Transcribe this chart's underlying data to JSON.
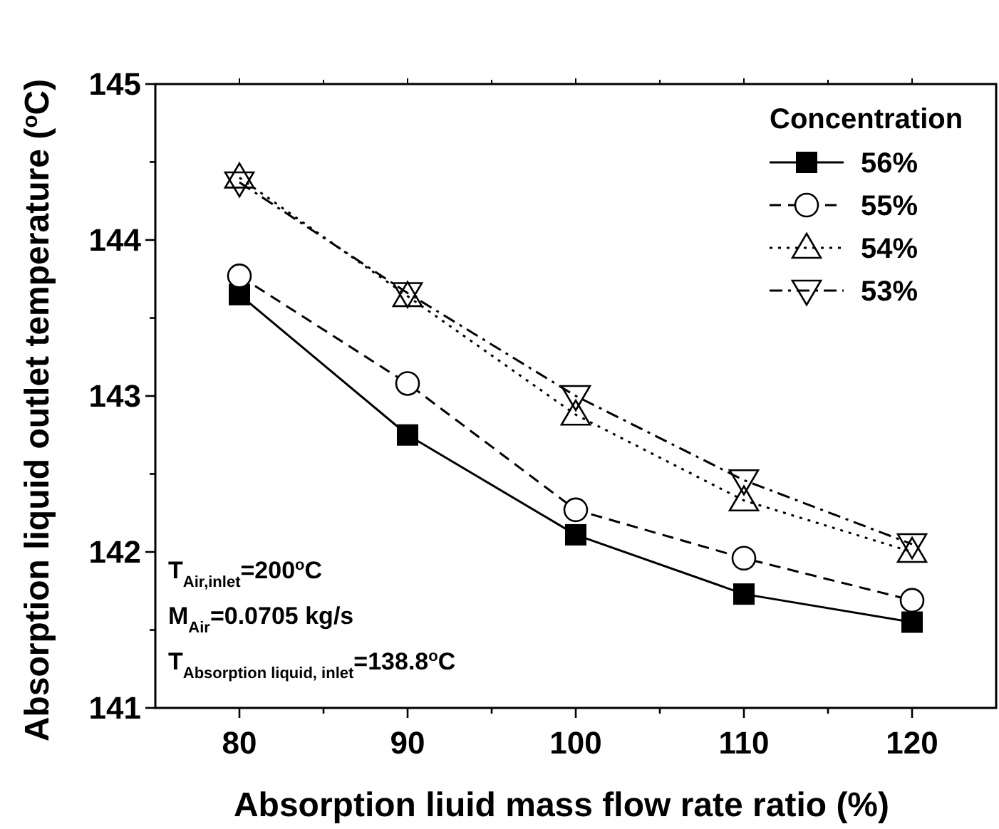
{
  "chart_data": {
    "type": "line",
    "xlabel": "Absorption liuid  mass flow rate ratio (%)",
    "ylabel": "Absorption liquid  outlet temperature ($^{o}$C)",
    "legend_title": "Concentration",
    "legend": "top right",
    "grid": false,
    "x": [
      80,
      90,
      100,
      110,
      120
    ],
    "xlim": [
      75,
      125
    ],
    "xticks": [
      80,
      {
        "value": 85,
        "label": null
      },
      90,
      {
        "value": 95,
        "label": null
      },
      100,
      {
        "value": 105,
        "label": null
      },
      110,
      {
        "value": 115,
        "label": null
      },
      120
    ],
    "ylim": [
      141,
      145
    ],
    "yticks": [
      141,
      {
        "value": 141.5,
        "label": null
      },
      142,
      {
        "value": 142.5,
        "label": null
      },
      143,
      {
        "value": 143.5,
        "label": null
      },
      144,
      {
        "value": 144.5,
        "label": null
      },
      145
    ],
    "series": [
      {
        "name": "56%",
        "color": "#000000",
        "marker": "square",
        "line_style": "solid",
        "values": [
          143.65,
          142.75,
          142.11,
          141.73,
          141.55
        ]
      },
      {
        "name": "55%",
        "color": "#000000",
        "marker": "circle",
        "line_style": "dashed",
        "values": [
          143.77,
          143.08,
          142.27,
          141.96,
          141.69
        ]
      },
      {
        "name": "54%",
        "color": "#000000",
        "marker": "triangle",
        "line_style": "dotted",
        "values": [
          144.4,
          143.64,
          142.88,
          142.33,
          142.0
        ]
      },
      {
        "name": "53%",
        "color": "#000000",
        "marker": "triangle-down",
        "line_style": "dashdot",
        "values": [
          144.37,
          143.66,
          143.0,
          142.46,
          142.05
        ]
      }
    ],
    "annotations": [
      "T$_{Air,inlet}$=200$^{o}$C",
      "M$_{Air}$=0.0705 kg/s",
      "T$_{Absorption liquid, inlet}$=138.8$^{o}$C"
    ]
  }
}
